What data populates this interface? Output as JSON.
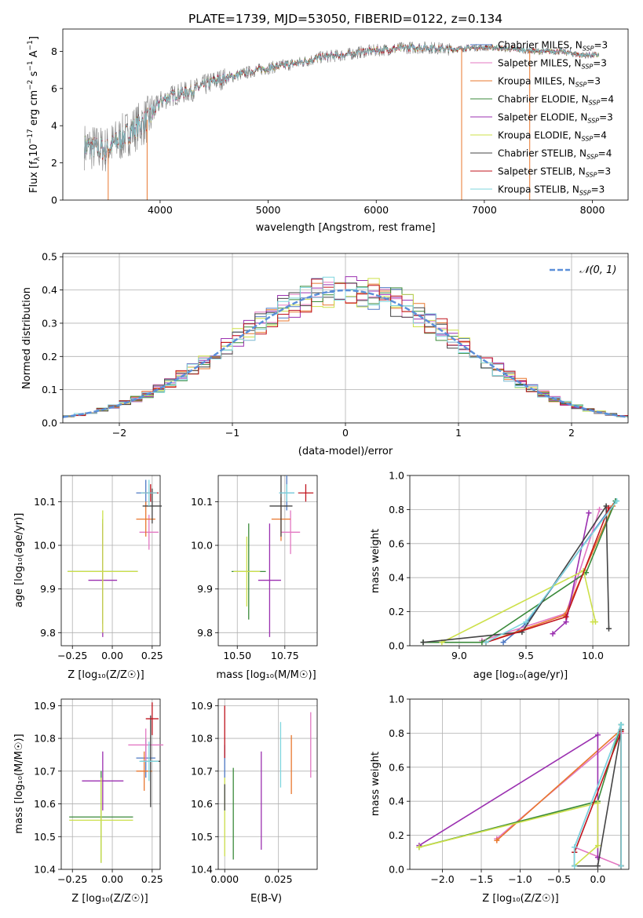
{
  "figure_title": "PLATE=1739, MJD=53050, FIBERID=0122, z=0.134",
  "models": [
    {
      "name": "Chabrier MILES",
      "nssp": "3",
      "color": "#4e79c4"
    },
    {
      "name": "Salpeter MILES",
      "nssp": "3",
      "color": "#e377c2"
    },
    {
      "name": "Kroupa MILES",
      "nssp": "3",
      "color": "#e8772e"
    },
    {
      "name": "Chabrier ELODIE",
      "nssp": "4",
      "color": "#3a8a3a"
    },
    {
      "name": "Salpeter ELODIE",
      "nssp": "3",
      "color": "#9b30b0"
    },
    {
      "name": "Kroupa ELODIE",
      "nssp": "4",
      "color": "#cde04a"
    },
    {
      "name": "Chabrier STELIB",
      "nssp": "4",
      "color": "#444444"
    },
    {
      "name": "Salpeter STELIB",
      "nssp": "3",
      "color": "#c0141e"
    },
    {
      "name": "Kroupa STELIB",
      "nssp": "3",
      "color": "#7fd6de"
    }
  ],
  "chart_data": [
    {
      "id": "spectrum",
      "type": "line",
      "xlabel": "wavelength [Angstrom, rest frame]",
      "ylabel_main": "Flux [f",
      "ylabel_sub1": "λ",
      "ylabel_mid1": "10",
      "ylabel_sup1": "−17",
      "ylabel_mid2": " erg cm",
      "ylabel_sup2": "−2",
      "ylabel_mid3": " s",
      "ylabel_sup3": "−1",
      "ylabel_mid4": " A",
      "ylabel_sup4": "−1",
      "ylabel_end": "]",
      "xlim": [
        3100,
        8330
      ],
      "ylim": [
        0,
        9.2
      ],
      "xticks": [
        4000,
        5000,
        6000,
        7000,
        8000
      ],
      "yticks": [
        0,
        2,
        4,
        6,
        8
      ],
      "continuum_x": [
        3300,
        3500,
        3700,
        3900,
        4000,
        4100,
        4300,
        4500,
        4700,
        4900,
        5100,
        5300,
        5500,
        5700,
        5900,
        6100,
        6300,
        6500,
        6700,
        6900,
        7100,
        7300,
        7500,
        7700,
        7900,
        8050
      ],
      "continuum_y": [
        2.9,
        2.7,
        3.6,
        4.4,
        5.3,
        5.6,
        5.9,
        6.4,
        6.7,
        7.0,
        7.2,
        7.4,
        7.7,
        7.8,
        8.0,
        8.1,
        8.2,
        8.2,
        8.1,
        8.2,
        8.2,
        8.1,
        8.0,
        8.0,
        7.8,
        7.8
      ],
      "legend_position": "upper right"
    },
    {
      "id": "residuals",
      "type": "histogram",
      "xlabel": "(data-model)/error",
      "ylabel": "Normed distribution",
      "xlim": [
        -2.5,
        2.5
      ],
      "ylim": [
        0,
        0.51
      ],
      "xticks": [
        -2,
        -1,
        0,
        1,
        2
      ],
      "xtick_labels": [
        "−2",
        "−1",
        "0",
        "1",
        "2"
      ],
      "yticks": [
        0,
        0.1,
        0.2,
        0.3,
        0.4,
        0.5
      ],
      "ytick_labels": [
        "0.0",
        "0.1",
        "0.2",
        "0.3",
        "0.4",
        "0.5"
      ],
      "bin_width": 0.1,
      "reference_curve": "N(0,1)",
      "legend_label": "𝒩(0, 1)",
      "legend_position": "upper right",
      "grid": true
    },
    {
      "id": "age_vs_Z",
      "type": "errorbar",
      "xlabel": "Z [log₁₀(Z/Z☉)]",
      "ylabel": "age  [log₁₀(age/yr)]",
      "xlim": [
        -0.32,
        0.3
      ],
      "ylim": [
        9.77,
        10.16
      ],
      "xticks": [
        -0.25,
        0.0,
        0.25
      ],
      "xtick_labels": [
        "−0.25",
        "0.00",
        "0.25"
      ],
      "yticks": [
        9.8,
        9.9,
        10.0,
        10.1
      ],
      "ytick_labels": [
        "9.8",
        "9.9",
        "10.0",
        "10.1"
      ],
      "points": [
        {
          "x": 0.21,
          "xerr": 0.06,
          "y": 10.12,
          "yerr": 0.03
        },
        {
          "x": 0.23,
          "xerr": 0.06,
          "y": 10.03,
          "yerr": 0.04
        },
        {
          "x": 0.21,
          "xerr": 0.06,
          "y": 10.06,
          "yerr": 0.04
        },
        {
          "x": -0.06,
          "xerr": 0.22,
          "y": 9.94,
          "yerr": 0.12
        },
        {
          "x": -0.06,
          "xerr": 0.09,
          "y": 9.92,
          "yerr": 0.13
        },
        {
          "x": -0.06,
          "xerr": 0.22,
          "y": 9.94,
          "yerr": 0.14
        },
        {
          "x": 0.25,
          "xerr": 0.06,
          "y": 10.09,
          "yerr": 0.04
        },
        {
          "x": 0.24,
          "xerr": 0.05,
          "y": 10.12,
          "yerr": 0.02
        },
        {
          "x": 0.23,
          "xerr": 0.05,
          "y": 10.12,
          "yerr": 0.03
        }
      ]
    },
    {
      "id": "age_vs_mass",
      "type": "errorbar",
      "xlabel": "mass [log₁₀(M/M☉)]",
      "ylabel": "",
      "xlim": [
        10.4,
        10.92
      ],
      "ylim": [
        9.77,
        10.16
      ],
      "xticks": [
        10.5,
        10.75
      ],
      "xtick_labels": [
        "10.50",
        "10.75"
      ],
      "yticks": [
        9.8,
        9.9,
        10.0,
        10.1
      ],
      "ytick_labels": [
        "9.8",
        "9.9",
        "10.0",
        "10.1"
      ],
      "points": [
        {
          "x": 10.76,
          "xerr": 0.04,
          "y": 10.12,
          "yerr": 0.04
        },
        {
          "x": 10.78,
          "xerr": 0.05,
          "y": 10.03,
          "yerr": 0.05
        },
        {
          "x": 10.73,
          "xerr": 0.05,
          "y": 10.06,
          "yerr": 0.05
        },
        {
          "x": 10.56,
          "xerr": 0.09,
          "y": 9.94,
          "yerr": 0.11
        },
        {
          "x": 10.67,
          "xerr": 0.06,
          "y": 9.92,
          "yerr": 0.13
        },
        {
          "x": 10.55,
          "xerr": 0.07,
          "y": 9.94,
          "yerr": 0.08
        },
        {
          "x": 10.73,
          "xerr": 0.06,
          "y": 10.09,
          "yerr": 0.07
        },
        {
          "x": 10.86,
          "xerr": 0.04,
          "y": 10.12,
          "yerr": 0.02
        },
        {
          "x": 10.76,
          "xerr": 0.04,
          "y": 10.12,
          "yerr": 0.02
        }
      ]
    },
    {
      "id": "massweight_vs_age",
      "type": "line",
      "xlabel": "age  [log₁₀(age/yr)]",
      "ylabel": "mass weight",
      "xlim": [
        8.63,
        10.27
      ],
      "ylim": [
        0,
        1.0
      ],
      "xticks": [
        9.0,
        9.5,
        10.0
      ],
      "xtick_labels": [
        "9.0",
        "9.5",
        "10.0"
      ],
      "yticks": [
        0,
        0.2,
        0.4,
        0.6,
        0.8,
        1.0
      ],
      "ytick_labels": [
        "0.0",
        "0.2",
        "0.4",
        "0.6",
        "0.8",
        "1.0"
      ],
      "grid": true,
      "series": [
        {
          "x": [
            9.33,
            9.5,
            10.17
          ],
          "y": [
            0.02,
            0.13,
            0.85
          ]
        },
        {
          "x": [
            9.17,
            9.8,
            10.05
          ],
          "y": [
            0.03,
            0.19,
            0.8
          ]
        },
        {
          "x": [
            9.2,
            9.79,
            10.15
          ],
          "y": [
            0.02,
            0.18,
            0.82
          ]
        },
        {
          "x": [
            8.73,
            9.17,
            9.95,
            10.17
          ],
          "y": [
            0.02,
            0.02,
            0.43,
            0.85
          ]
        },
        {
          "x": [
            9.7,
            9.8,
            9.97
          ],
          "y": [
            0.07,
            0.14,
            0.78
          ]
        },
        {
          "x": [
            8.87,
            9.93,
            10.02,
            10.0
          ],
          "y": [
            0.02,
            0.44,
            0.14,
            0.14
          ]
        },
        {
          "x": [
            8.73,
            9.47,
            10.1,
            10.12
          ],
          "y": [
            0.02,
            0.08,
            0.82,
            0.1
          ]
        },
        {
          "x": [
            9.2,
            9.8,
            10.12
          ],
          "y": [
            0.02,
            0.17,
            0.81
          ]
        },
        {
          "x": [
            9.2,
            9.5,
            10.18
          ],
          "y": [
            0.02,
            0.14,
            0.85
          ]
        }
      ]
    },
    {
      "id": "mass_vs_Z",
      "type": "errorbar",
      "xlabel": "Z [log₁₀(Z/Z☉)]",
      "ylabel": "mass [log₁₀(M/M☉)]",
      "xlim": [
        -0.32,
        0.3
      ],
      "ylim": [
        10.4,
        10.92
      ],
      "xticks": [
        -0.25,
        0.0,
        0.25
      ],
      "xtick_labels": [
        "−0.25",
        "0.00",
        "0.25"
      ],
      "yticks": [
        10.4,
        10.5,
        10.6,
        10.7,
        10.8,
        10.9
      ],
      "ytick_labels": [
        "10.4",
        "10.5",
        "10.6",
        "10.7",
        "10.8",
        "10.9"
      ],
      "points": [
        {
          "x": 0.21,
          "xerr": 0.06,
          "y": 10.74,
          "yerr": 0.06
        },
        {
          "x": 0.21,
          "xerr": 0.11,
          "y": 10.78,
          "yerr": 0.05
        },
        {
          "x": 0.2,
          "xerr": 0.05,
          "y": 10.7,
          "yerr": 0.06
        },
        {
          "x": -0.07,
          "xerr": 0.2,
          "y": 10.56,
          "yerr": 0.14
        },
        {
          "x": -0.06,
          "xerr": 0.13,
          "y": 10.67,
          "yerr": 0.09
        },
        {
          "x": -0.07,
          "xerr": 0.2,
          "y": 10.55,
          "yerr": 0.13
        },
        {
          "x": 0.24,
          "xerr": 0.06,
          "y": 10.73,
          "yerr": 0.14
        },
        {
          "x": 0.25,
          "xerr": 0.04,
          "y": 10.86,
          "yerr": 0.05
        },
        {
          "x": 0.23,
          "xerr": 0.06,
          "y": 10.73,
          "yerr": 0.06
        }
      ]
    },
    {
      "id": "mass_vs_EBV",
      "type": "errorbar",
      "xlabel": "E(B-V)",
      "ylabel": "",
      "xlim": [
        -0.003,
        0.043
      ],
      "ylim": [
        10.4,
        10.92
      ],
      "xticks": [
        0.0,
        0.025
      ],
      "xtick_labels": [
        "0.000",
        "0.025"
      ],
      "yticks": [
        10.4,
        10.5,
        10.6,
        10.7,
        10.8,
        10.9
      ],
      "ytick_labels": [
        "10.4",
        "10.5",
        "10.6",
        "10.7",
        "10.8",
        "10.9"
      ],
      "points": [
        {
          "x": 0.0,
          "xerr": 0,
          "y": 10.73,
          "yerr": 0.05
        },
        {
          "x": 0.04,
          "xerr": 0,
          "y": 10.78,
          "yerr": 0.1
        },
        {
          "x": 0.031,
          "xerr": 0,
          "y": 10.72,
          "yerr": 0.09
        },
        {
          "x": 0.004,
          "xerr": 0,
          "y": 10.57,
          "yerr": 0.14
        },
        {
          "x": 0.017,
          "xerr": 0,
          "y": 10.61,
          "yerr": 0.15
        },
        {
          "x": 0.0,
          "xerr": 0,
          "y": 10.56,
          "yerr": 0.12
        },
        {
          "x": 0.0,
          "xerr": 0,
          "y": 10.62,
          "yerr": 0.04
        },
        {
          "x": 0.0,
          "xerr": 0,
          "y": 10.82,
          "yerr": 0.08
        },
        {
          "x": 0.026,
          "xerr": 0,
          "y": 10.75,
          "yerr": 0.1
        }
      ]
    },
    {
      "id": "massweight_vs_Z",
      "type": "line",
      "xlabel": "Z [log₁₀(Z/Z☉)]",
      "ylabel": "mass weight",
      "xlim": [
        -2.42,
        0.4
      ],
      "ylim": [
        0,
        1.0
      ],
      "xticks": [
        -2.0,
        -1.5,
        -1.0,
        -0.5,
        0.0
      ],
      "xtick_labels": [
        "−2.0",
        "−1.5",
        "−1.0",
        "−0.5",
        "0.0"
      ],
      "yticks": [
        0,
        0.2,
        0.4,
        0.6,
        0.8,
        1.0
      ],
      "ytick_labels": [
        "0.0",
        "0.2",
        "0.4",
        "0.6",
        "0.8",
        "1.0"
      ],
      "grid": true,
      "series": [
        {
          "x": [
            -0.3,
            -0.3,
            0.3,
            0.3
          ],
          "y": [
            0.02,
            0.13,
            0.85,
            0.02
          ]
        },
        {
          "x": [
            -1.3,
            0.3,
            0.3,
            -0.3
          ],
          "y": [
            0.18,
            0.8,
            0.02,
            0.13
          ]
        },
        {
          "x": [
            -1.3,
            0.3,
            0.3
          ],
          "y": [
            0.17,
            0.82,
            0.02
          ]
        },
        {
          "x": [
            -2.3,
            0.0,
            0.3,
            0.3
          ],
          "y": [
            0.13,
            0.4,
            0.85,
            0.02
          ]
        },
        {
          "x": [
            -2.3,
            0.0,
            0.0
          ],
          "y": [
            0.14,
            0.79,
            0.07
          ]
        },
        {
          "x": [
            -2.3,
            0.0,
            0.0,
            -0.3
          ],
          "y": [
            0.13,
            0.39,
            0.14,
            0.02
          ]
        },
        {
          "x": [
            -0.3,
            -0.3,
            0.0,
            0.3
          ],
          "y": [
            0.1,
            0.02,
            0.02,
            0.82
          ]
        },
        {
          "x": [
            -0.3,
            0.3,
            0.3
          ],
          "y": [
            0.1,
            0.81,
            0.02
          ]
        },
        {
          "x": [
            -0.3,
            -0.3,
            0.3,
            0.3
          ],
          "y": [
            0.02,
            0.13,
            0.85,
            0.02
          ]
        }
      ]
    }
  ]
}
